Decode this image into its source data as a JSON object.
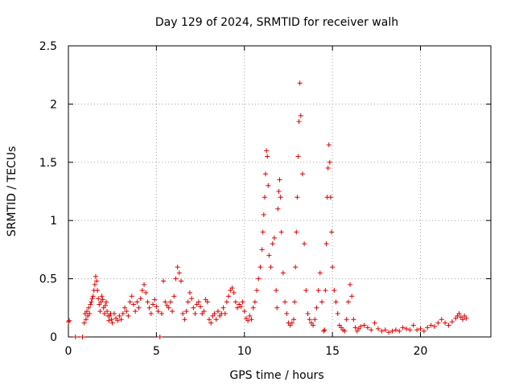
{
  "chart_data": {
    "type": "scatter",
    "title": "Day 129 of 2024, SRMTID for receiver walh",
    "xlabel": "GPS time / hours",
    "ylabel": "SRMTID / TECUs",
    "xlim": [
      0,
      24
    ],
    "ylim": [
      0,
      2.5
    ],
    "xticks": [
      0,
      5,
      10,
      15,
      20
    ],
    "xtick_labels": [
      "0",
      "5",
      "10",
      "15",
      "20"
    ],
    "yticks": [
      0,
      0.5,
      1,
      1.5,
      2,
      2.5
    ],
    "ytick_labels": [
      "0",
      "0.5",
      "1",
      "1.5",
      "2",
      "2.5"
    ],
    "grid": true,
    "marker": "+",
    "series": [
      {
        "name": "SRMTID",
        "color": "#e00000",
        "x": [
          0.0,
          0.05,
          0.4,
          0.8,
          0.9,
          0.95,
          1.0,
          1.05,
          1.1,
          1.15,
          1.2,
          1.25,
          1.3,
          1.35,
          1.4,
          1.45,
          1.5,
          1.55,
          1.6,
          1.65,
          1.7,
          1.75,
          1.8,
          1.85,
          1.9,
          1.95,
          2.0,
          2.05,
          2.1,
          2.15,
          2.2,
          2.25,
          2.3,
          2.35,
          2.4,
          2.45,
          2.5,
          2.6,
          2.7,
          2.8,
          2.9,
          3.0,
          3.1,
          3.2,
          3.3,
          3.4,
          3.5,
          3.6,
          3.7,
          3.8,
          3.9,
          4.0,
          4.1,
          4.2,
          4.3,
          4.4,
          4.5,
          4.6,
          4.7,
          4.8,
          4.9,
          5.0,
          5.1,
          5.2,
          5.3,
          5.4,
          5.5,
          5.6,
          5.7,
          5.8,
          5.9,
          6.0,
          6.1,
          6.2,
          6.3,
          6.4,
          6.5,
          6.6,
          6.7,
          6.8,
          6.9,
          7.0,
          7.1,
          7.2,
          7.3,
          7.4,
          7.5,
          7.6,
          7.7,
          7.8,
          7.9,
          8.0,
          8.1,
          8.2,
          8.3,
          8.4,
          8.5,
          8.6,
          8.7,
          8.8,
          8.9,
          9.0,
          9.1,
          9.2,
          9.3,
          9.4,
          9.5,
          9.6,
          9.7,
          9.8,
          9.9,
          10.0,
          10.1,
          10.2,
          10.3,
          10.4,
          10.5,
          10.6,
          10.7,
          10.8,
          10.9,
          11.0,
          11.05,
          11.1,
          11.15,
          11.2,
          11.25,
          11.3,
          11.35,
          11.4,
          11.5,
          11.6,
          11.7,
          11.8,
          11.85,
          11.9,
          11.95,
          12.0,
          12.05,
          12.1,
          12.2,
          12.3,
          12.4,
          12.5,
          12.6,
          12.7,
          12.8,
          12.85,
          12.9,
          12.95,
          13.0,
          13.05,
          13.1,
          13.15,
          13.2,
          13.3,
          13.4,
          13.5,
          13.6,
          13.7,
          13.8,
          13.9,
          14.0,
          14.1,
          14.2,
          14.3,
          14.4,
          14.5,
          14.55,
          14.6,
          14.65,
          14.7,
          14.75,
          14.8,
          14.85,
          14.9,
          14.95,
          15.0,
          15.1,
          15.2,
          15.3,
          15.4,
          15.5,
          15.6,
          15.7,
          15.8,
          15.9,
          16.0,
          16.1,
          16.2,
          16.3,
          16.4,
          16.5,
          16.6,
          16.8,
          17.0,
          17.2,
          17.4,
          17.6,
          17.8,
          18.0,
          18.2,
          18.4,
          18.6,
          18.8,
          19.0,
          19.2,
          19.4,
          19.6,
          19.8,
          20.0,
          20.2,
          20.4,
          20.6,
          20.8,
          21.0,
          21.2,
          21.4,
          21.6,
          21.8,
          22.0,
          22.1,
          22.2,
          22.3,
          22.4,
          22.5,
          22.6
        ],
        "y": [
          0.13,
          0.14,
          0.0,
          0.0,
          0.12,
          0.2,
          0.15,
          0.22,
          0.18,
          0.25,
          0.2,
          0.28,
          0.3,
          0.33,
          0.35,
          0.4,
          0.45,
          0.52,
          0.48,
          0.4,
          0.33,
          0.28,
          0.22,
          0.3,
          0.35,
          0.32,
          0.25,
          0.2,
          0.27,
          0.3,
          0.22,
          0.18,
          0.14,
          0.18,
          0.2,
          0.15,
          0.12,
          0.2,
          0.16,
          0.14,
          0.18,
          0.15,
          0.2,
          0.25,
          0.22,
          0.18,
          0.3,
          0.35,
          0.28,
          0.22,
          0.3,
          0.25,
          0.33,
          0.4,
          0.45,
          0.38,
          0.3,
          0.25,
          0.2,
          0.28,
          0.32,
          0.26,
          0.22,
          0.0,
          0.2,
          0.48,
          0.3,
          0.27,
          0.25,
          0.3,
          0.22,
          0.35,
          0.5,
          0.6,
          0.55,
          0.48,
          0.2,
          0.15,
          0.22,
          0.3,
          0.38,
          0.33,
          0.25,
          0.2,
          0.28,
          0.3,
          0.26,
          0.2,
          0.22,
          0.32,
          0.3,
          0.15,
          0.12,
          0.18,
          0.2,
          0.15,
          0.22,
          0.18,
          0.2,
          0.25,
          0.2,
          0.3,
          0.35,
          0.4,
          0.42,
          0.38,
          0.3,
          0.25,
          0.28,
          0.26,
          0.3,
          0.22,
          0.16,
          0.14,
          0.18,
          0.15,
          0.25,
          0.3,
          0.4,
          0.5,
          0.6,
          0.75,
          0.9,
          1.05,
          1.2,
          1.4,
          1.6,
          1.55,
          1.3,
          0.7,
          0.6,
          0.8,
          0.85,
          0.4,
          0.25,
          1.1,
          1.25,
          1.35,
          1.2,
          0.9,
          0.55,
          0.3,
          0.2,
          0.12,
          0.1,
          0.12,
          0.15,
          0.3,
          0.6,
          0.9,
          1.2,
          1.55,
          1.85,
          2.18,
          1.9,
          1.4,
          0.8,
          0.4,
          0.2,
          0.15,
          0.12,
          0.1,
          0.15,
          0.25,
          0.4,
          0.55,
          0.3,
          0.05,
          0.06,
          0.4,
          0.8,
          1.2,
          1.45,
          1.65,
          1.5,
          1.2,
          0.9,
          0.6,
          0.4,
          0.3,
          0.2,
          0.1,
          0.08,
          0.06,
          0.05,
          0.15,
          0.3,
          0.45,
          0.35,
          0.15,
          0.08,
          0.05,
          0.07,
          0.09,
          0.1,
          0.08,
          0.06,
          0.12,
          0.07,
          0.05,
          0.06,
          0.04,
          0.05,
          0.06,
          0.05,
          0.08,
          0.07,
          0.06,
          0.1,
          0.06,
          0.07,
          0.05,
          0.08,
          0.1,
          0.09,
          0.12,
          0.15,
          0.12,
          0.1,
          0.13,
          0.16,
          0.18,
          0.2,
          0.17,
          0.15,
          0.18,
          0.16
        ]
      }
    ]
  }
}
